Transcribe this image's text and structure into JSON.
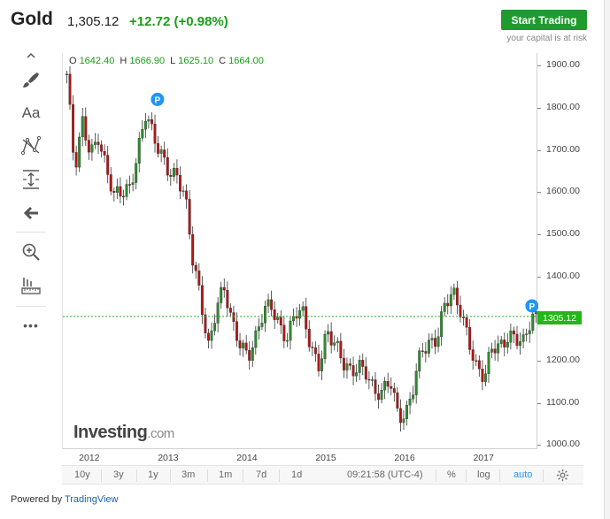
{
  "header": {
    "title": "Gold",
    "price": "1,305.12",
    "change": "+12.72 (+0.98%)",
    "trade_button": "Start Trading",
    "risk_note": "your capital is at risk"
  },
  "toolbar": {
    "items": [
      {
        "name": "scroll-up-icon"
      },
      {
        "name": "brush-icon"
      },
      {
        "name": "text-icon",
        "label": "Aa"
      },
      {
        "name": "pattern-icon"
      },
      {
        "name": "measure-icon"
      },
      {
        "name": "back-arrow-icon"
      },
      {
        "name": "zoom-icon"
      },
      {
        "name": "ruler-icon"
      },
      {
        "name": "more-icon",
        "label": "•••"
      }
    ]
  },
  "ohlc": {
    "o_label": "O",
    "o": "1642.40",
    "h_label": "H",
    "h": "1666.90",
    "l_label": "L",
    "l": "1625.10",
    "c_label": "C",
    "c": "1664.00"
  },
  "price_tag": "1305.12",
  "watermark": {
    "brand": "Investing",
    "suffix": ".com"
  },
  "marker_label": "P",
  "chart_data": {
    "type": "line",
    "style": "candlestick",
    "ylim": [
      990,
      1930
    ],
    "yticks": [
      "1900.00",
      "1800.00",
      "1700.00",
      "1600.00",
      "1500.00",
      "1400.00",
      "1300.00",
      "1200.00",
      "1100.00",
      "1000.00"
    ],
    "xticks": [
      "2012",
      "2013",
      "2014",
      "2015",
      "2016",
      "2017"
    ],
    "current_price": 1305.12,
    "up_color": "#2e8b2e",
    "down_color": "#b01818",
    "series": [
      {
        "x": [
          2011.7,
          2011.8,
          2011.9,
          2012.0,
          2012.1,
          2012.2,
          2012.3,
          2012.4,
          2012.5,
          2012.6,
          2012.7,
          2012.8,
          2012.9,
          2013.0,
          2013.1,
          2013.2,
          2013.3,
          2013.4,
          2013.5,
          2013.6,
          2013.7,
          2013.8,
          2013.9,
          2014.0,
          2014.1,
          2014.2,
          2014.3,
          2014.4,
          2014.5,
          2014.6,
          2014.7,
          2014.8,
          2014.9,
          2015.0,
          2015.1,
          2015.2,
          2015.3,
          2015.4,
          2015.5,
          2015.6,
          2015.7,
          2015.8,
          2015.9,
          2016.0,
          2016.1,
          2016.2,
          2016.3,
          2016.4,
          2016.5,
          2016.6,
          2016.7,
          2016.8,
          2016.9,
          2017.0,
          2017.1,
          2017.2,
          2017.3,
          2017.4,
          2017.5,
          2017.6
        ],
        "values": [
          1880,
          1640,
          1760,
          1700,
          1740,
          1650,
          1580,
          1600,
          1620,
          1700,
          1780,
          1720,
          1690,
          1660,
          1640,
          1580,
          1430,
          1350,
          1240,
          1330,
          1360,
          1280,
          1250,
          1220,
          1250,
          1310,
          1330,
          1290,
          1260,
          1310,
          1300,
          1230,
          1200,
          1270,
          1230,
          1190,
          1180,
          1200,
          1170,
          1110,
          1120,
          1170,
          1080,
          1060,
          1130,
          1230,
          1250,
          1260,
          1330,
          1350,
          1320,
          1260,
          1180,
          1150,
          1230,
          1240,
          1270,
          1250,
          1230,
          1305
        ]
      }
    ]
  },
  "xaxis": {
    "ticks": [
      "2012",
      "2013",
      "2014",
      "2015",
      "2016",
      "2017"
    ]
  },
  "bottom": {
    "ranges": [
      "10y",
      "3y",
      "1y",
      "3m",
      "1m",
      "7d",
      "1d"
    ],
    "clock": "09:21:58 (UTC-4)",
    "percent": "%",
    "log": "log",
    "auto": "auto"
  },
  "footer": {
    "powered_by": "Powered by",
    "brand": "TradingView"
  }
}
